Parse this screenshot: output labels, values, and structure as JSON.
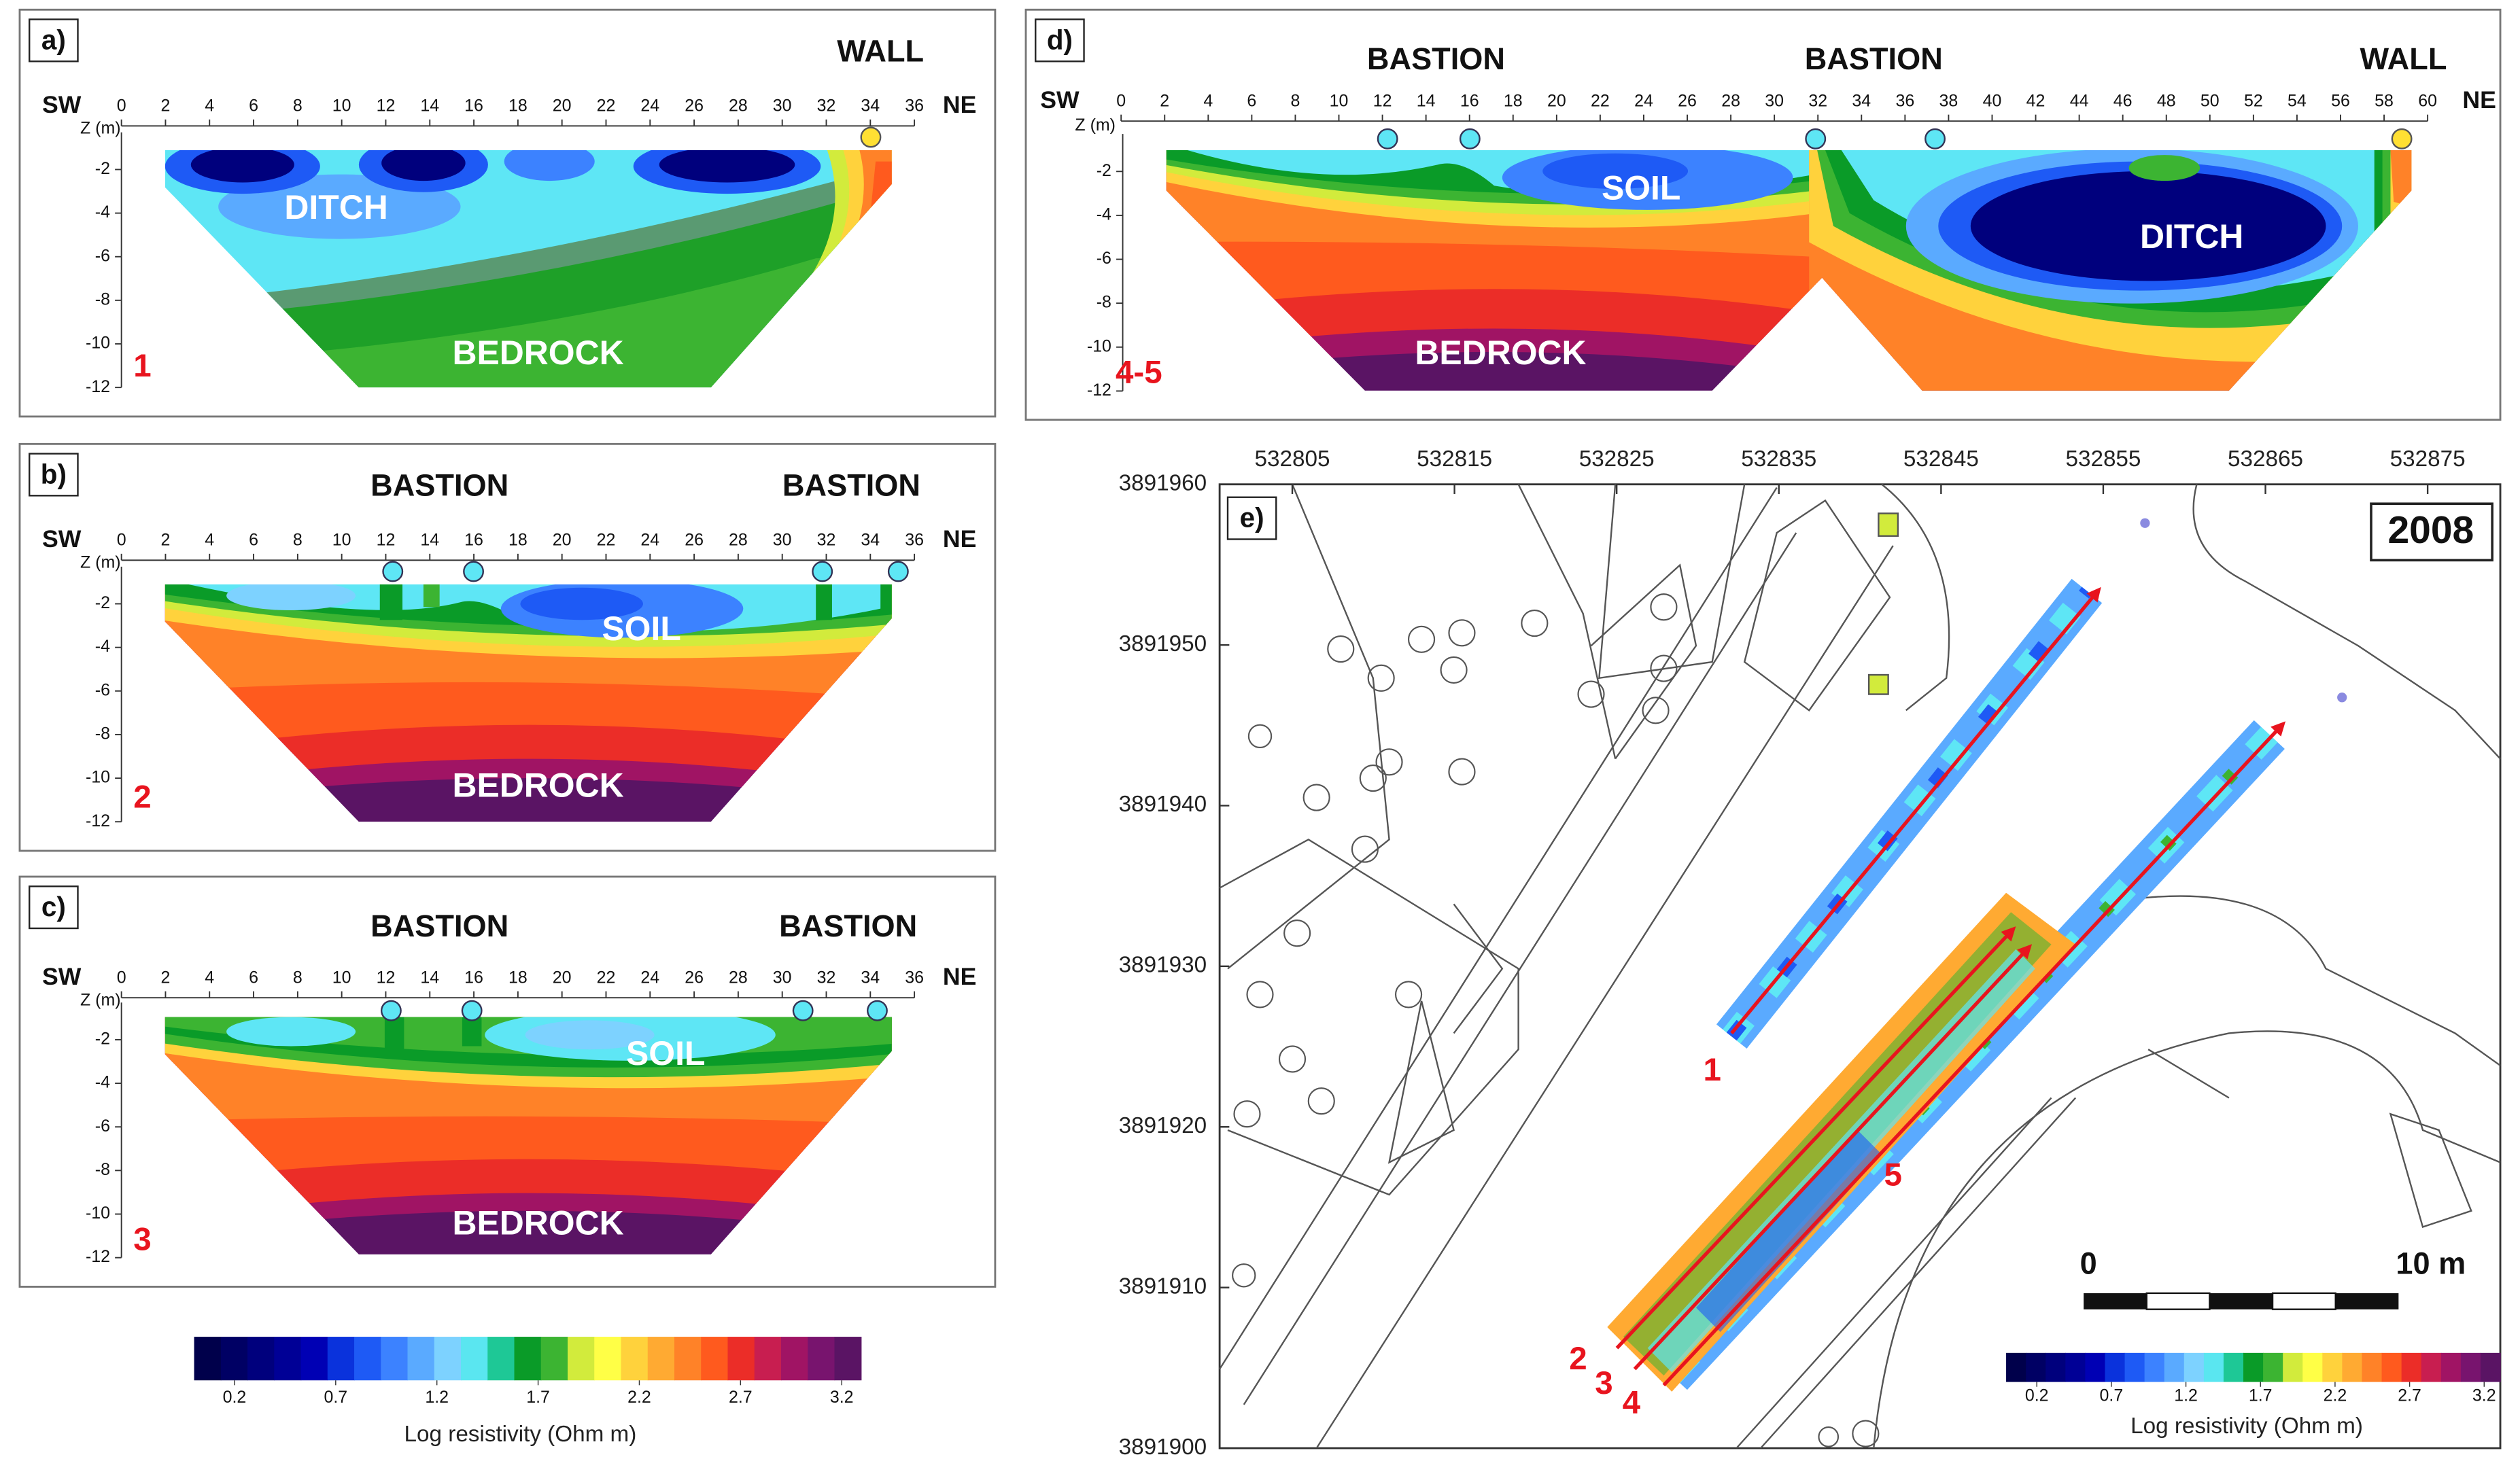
{
  "panels": [
    {
      "label": "a)",
      "left": "SW",
      "right": "NE",
      "x_ticks": [
        0,
        2,
        4,
        6,
        8,
        10,
        12,
        14,
        16,
        18,
        20,
        22,
        24,
        26,
        28,
        30,
        32,
        34,
        36
      ],
      "z_label": "Z (m)",
      "z_ticks": [
        -2,
        -4,
        -6,
        -8,
        -10,
        -12
      ],
      "annotations": [
        "WALL",
        "DITCH",
        "BEDROCK"
      ],
      "profile": "1"
    },
    {
      "label": "b)",
      "left": "SW",
      "right": "NE",
      "x_ticks": [
        0,
        2,
        4,
        6,
        8,
        10,
        12,
        14,
        16,
        18,
        20,
        22,
        24,
        26,
        28,
        30,
        32,
        34,
        36
      ],
      "z_label": "Z (m)",
      "z_ticks": [
        -2,
        -4,
        -6,
        -8,
        -10,
        -12
      ],
      "annotations": [
        "BASTION",
        "BASTION",
        "SOIL",
        "BEDROCK"
      ],
      "profile": "2"
    },
    {
      "label": "c)",
      "left": "SW",
      "right": "NE",
      "x_ticks": [
        0,
        2,
        4,
        6,
        8,
        10,
        12,
        14,
        16,
        18,
        20,
        22,
        24,
        26,
        28,
        30,
        32,
        34,
        36
      ],
      "z_label": "Z (m)",
      "z_ticks": [
        -2,
        -4,
        -6,
        -8,
        -10,
        -12
      ],
      "annotations": [
        "BASTION",
        "BASTION",
        "SOIL",
        "BEDROCK"
      ],
      "profile": "3"
    },
    {
      "label": "d)",
      "left": "SW",
      "right": "NE",
      "x_ticks": [
        0,
        2,
        4,
        6,
        8,
        10,
        12,
        14,
        16,
        18,
        20,
        22,
        24,
        26,
        28,
        30,
        32,
        34,
        36,
        38,
        40,
        42,
        44,
        46,
        48,
        50,
        52,
        54,
        56,
        58,
        60
      ],
      "z_label": "Z (m)",
      "z_ticks": [
        -2,
        -4,
        -6,
        -8,
        -10,
        -12
      ],
      "annotations": [
        "BASTION",
        "BASTION",
        "WALL",
        "SOIL",
        "DITCH",
        "BEDROCK"
      ],
      "profile": "4-5"
    }
  ],
  "colorbar": {
    "ticks": [
      0.2,
      0.7,
      1.2,
      1.7,
      2.2,
      2.7,
      3.2
    ],
    "label": "Log resistivity (Ohm m)",
    "colors": [
      "#00004b",
      "#000064",
      "#00007d",
      "#000096",
      "#0000b4",
      "#0a32dc",
      "#1e5af5",
      "#3c82ff",
      "#5aaaff",
      "#7dd2ff",
      "#5ae6f0",
      "#1ec896",
      "#0a9b28",
      "#3cb432",
      "#d2eb3c",
      "#ffff46",
      "#ffd23c",
      "#ffaa32",
      "#ff8228",
      "#ff5a1e",
      "#eb2d28",
      "#c81e50",
      "#a01464",
      "#78146e",
      "#5a1464"
    ]
  },
  "map": {
    "label": "e)",
    "year": "2008",
    "easting": [
      532805,
      532815,
      532825,
      532835,
      532845,
      532855,
      532865,
      532875
    ],
    "northing": [
      3891960,
      3891950,
      3891940,
      3891930,
      3891920,
      3891910,
      3891900
    ],
    "scale": {
      "start": "0",
      "end": "10 m"
    },
    "profiles": [
      "1",
      "2",
      "3",
      "4",
      "5"
    ],
    "colorbar": {
      "ticks": [
        0.2,
        0.7,
        1.2,
        1.7,
        2.2,
        2.7,
        3.2
      ],
      "label": "Log resistivity (Ohm m)"
    }
  }
}
